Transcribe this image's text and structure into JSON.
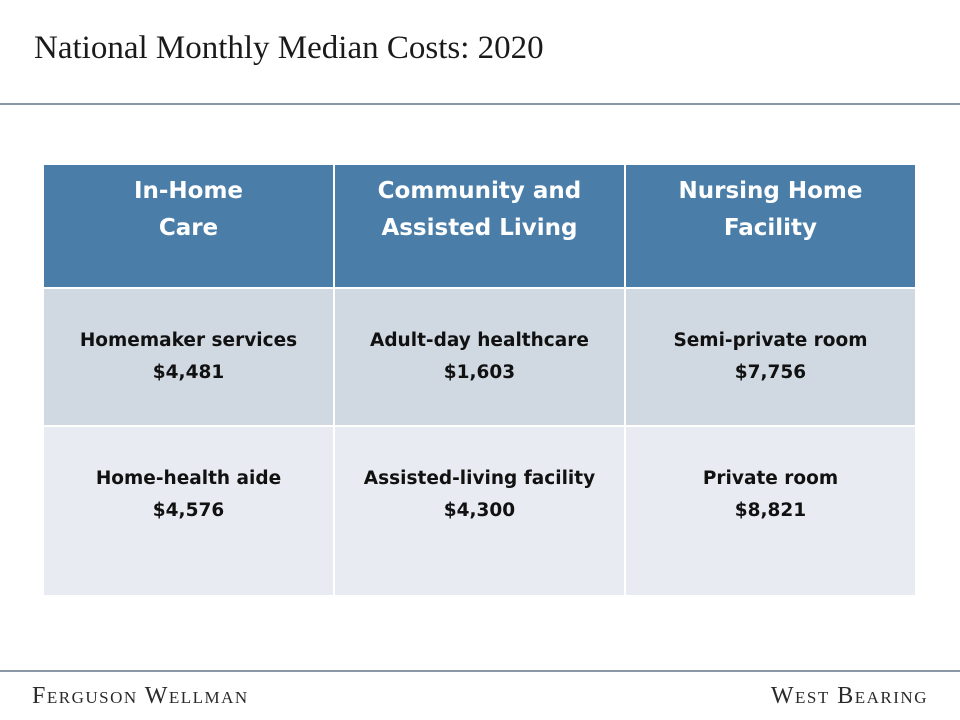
{
  "title": "National Monthly Median Costs: 2020",
  "table": {
    "headers": [
      {
        "line1": "In-Home",
        "line2": "Care"
      },
      {
        "line1": "Community and",
        "line2": "Assisted Living"
      },
      {
        "line1": "Nursing Home",
        "line2": "Facility"
      }
    ],
    "rows": [
      [
        {
          "label": "Homemaker services",
          "value": "$4,481"
        },
        {
          "label": "Adult-day healthcare",
          "value": "$1,603"
        },
        {
          "label": "Semi-private room",
          "value": "$7,756"
        }
      ],
      [
        {
          "label": "Home-health aide",
          "value": "$4,576"
        },
        {
          "label": "Assisted-living facility",
          "value": "$4,300"
        },
        {
          "label": "Private room",
          "value": "$8,821"
        }
      ]
    ]
  },
  "footer": {
    "left": "Ferguson Wellman",
    "right": "West Bearing"
  },
  "colors": {
    "header_bg": "#4a7ea8",
    "row1_bg": "#d0d8e2",
    "row2_bg": "#e8ebf1",
    "rule": "#8a97a6"
  }
}
